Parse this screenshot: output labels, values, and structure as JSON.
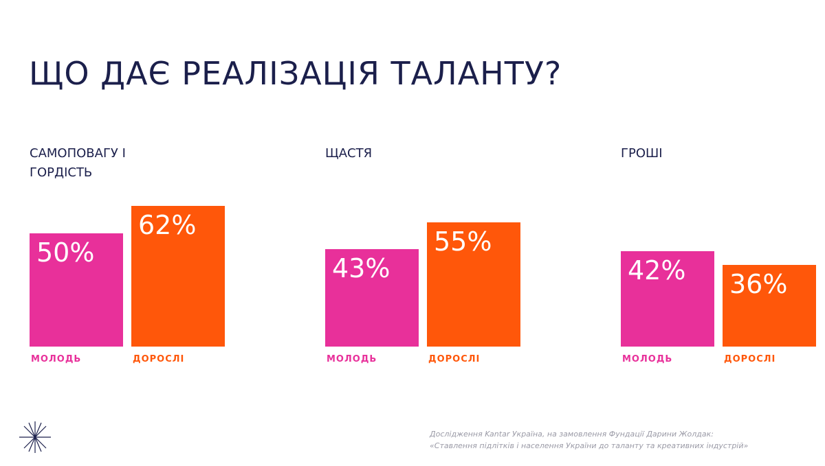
{
  "title": "ЩО ДАЄ РЕАЛІЗАЦІЯ ТАЛАНТУ?",
  "source": [
    "Дослідження Kantar Україна, на замовлення Фундації Дарини Жолдак:",
    "«Ставлення підлітків і населення України до таланту та креативних індустрій»"
  ],
  "chart_data": [
    {
      "type": "bar",
      "title": "САМОПОВАГУ І ГОРДІСТЬ",
      "categories": [
        "МОЛОДЬ",
        "ДОРОСЛІ"
      ],
      "values": [
        50,
        62
      ],
      "value_labels": [
        "50%",
        "62%"
      ],
      "colors": [
        "#e8309a",
        "#ff570a"
      ],
      "ylim": [
        0,
        100
      ]
    },
    {
      "type": "bar",
      "title": "ЩАСТЯ",
      "categories": [
        "МОЛОДЬ",
        "ДОРОСЛІ"
      ],
      "values": [
        43,
        55
      ],
      "value_labels": [
        "43%",
        "55%"
      ],
      "colors": [
        "#e8309a",
        "#ff570a"
      ],
      "ylim": [
        0,
        100
      ]
    },
    {
      "type": "bar",
      "title": "ГРОШІ",
      "categories": [
        "МОЛОДЬ",
        "ДОРОСЛІ"
      ],
      "values": [
        42,
        36
      ],
      "value_labels": [
        "42%",
        "36%"
      ],
      "colors": [
        "#e8309a",
        "#ff570a"
      ],
      "ylim": [
        0,
        100
      ]
    }
  ]
}
